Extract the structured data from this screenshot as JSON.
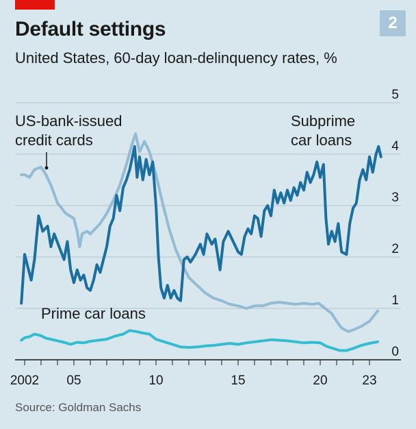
{
  "header": {
    "title": "Default settings",
    "subtitle": "United States, 60-day loan-delinquency rates, %",
    "chart_number": "2"
  },
  "source": "Source: Goldman Sachs",
  "colors": {
    "background": "#d8e6ee",
    "accent": "#e3120b",
    "subprime": "#1a6fa0",
    "credit_cards": "#93bcd4",
    "prime": "#35bcd0",
    "badge": "#a8c6d8"
  },
  "chart_data": {
    "type": "line",
    "title": "Default settings",
    "subtitle": "United States, 60-day loan-delinquency rates, %",
    "xlim": [
      2001.5,
      2024
    ],
    "ylim": [
      0,
      5
    ],
    "x_ticks": [
      2002,
      2005,
      2010,
      2015,
      2020,
      2023
    ],
    "x_tick_labels": [
      "2002",
      "05",
      "10",
      "15",
      "20",
      "23"
    ],
    "y_ticks": [
      0,
      1,
      2,
      3,
      4,
      5
    ],
    "y_tick_labels": [
      "0",
      "1",
      "2",
      "3",
      "4",
      "5"
    ],
    "grid": true,
    "legend": "inline labels",
    "annotations": [
      {
        "text": "US-bank-issued",
        "series": "US-bank-issued credit cards"
      },
      {
        "text": "credit cards",
        "series": "US-bank-issued credit cards"
      },
      {
        "text": "Subprime",
        "series": "Subprime car loans"
      },
      {
        "text": "car loans",
        "series": "Subprime car loans"
      },
      {
        "text": "Prime car loans",
        "series": "Prime car loans"
      }
    ],
    "series": [
      {
        "name": "Subprime car loans",
        "color": "#1a6fa0",
        "points": [
          [
            2001.8,
            1.1
          ],
          [
            2002.0,
            2.05
          ],
          [
            2002.2,
            1.8
          ],
          [
            2002.4,
            1.55
          ],
          [
            2002.6,
            1.95
          ],
          [
            2002.85,
            2.8
          ],
          [
            2003.1,
            2.5
          ],
          [
            2003.4,
            2.6
          ],
          [
            2003.6,
            2.2
          ],
          [
            2003.8,
            2.45
          ],
          [
            2004.1,
            2.2
          ],
          [
            2004.4,
            1.95
          ],
          [
            2004.6,
            2.3
          ],
          [
            2004.8,
            1.75
          ],
          [
            2005.0,
            1.5
          ],
          [
            2005.2,
            1.75
          ],
          [
            2005.4,
            1.55
          ],
          [
            2005.6,
            1.65
          ],
          [
            2005.8,
            1.4
          ],
          [
            2006.0,
            1.35
          ],
          [
            2006.2,
            1.55
          ],
          [
            2006.4,
            1.85
          ],
          [
            2006.6,
            1.7
          ],
          [
            2006.8,
            1.95
          ],
          [
            2007.0,
            2.2
          ],
          [
            2007.2,
            2.6
          ],
          [
            2007.4,
            2.75
          ],
          [
            2007.6,
            3.2
          ],
          [
            2007.8,
            2.9
          ],
          [
            2008.0,
            3.35
          ],
          [
            2008.2,
            3.5
          ],
          [
            2008.4,
            3.7
          ],
          [
            2008.6,
            4.0
          ],
          [
            2008.7,
            4.15
          ],
          [
            2008.85,
            3.55
          ],
          [
            2009.0,
            3.95
          ],
          [
            2009.2,
            3.5
          ],
          [
            2009.4,
            3.9
          ],
          [
            2009.6,
            3.6
          ],
          [
            2009.8,
            3.85
          ],
          [
            2010.0,
            3.0
          ],
          [
            2010.15,
            2.0
          ],
          [
            2010.3,
            1.4
          ],
          [
            2010.5,
            1.2
          ],
          [
            2010.7,
            1.45
          ],
          [
            2010.9,
            1.2
          ],
          [
            2011.1,
            1.35
          ],
          [
            2011.3,
            1.2
          ],
          [
            2011.5,
            1.15
          ],
          [
            2011.7,
            1.95
          ],
          [
            2011.9,
            2.0
          ],
          [
            2012.1,
            1.9
          ],
          [
            2012.4,
            2.05
          ],
          [
            2012.7,
            2.25
          ],
          [
            2012.9,
            2.05
          ],
          [
            2013.1,
            2.45
          ],
          [
            2013.4,
            2.25
          ],
          [
            2013.6,
            2.35
          ],
          [
            2013.9,
            1.75
          ],
          [
            2014.1,
            2.3
          ],
          [
            2014.4,
            2.5
          ],
          [
            2014.7,
            2.3
          ],
          [
            2015.0,
            2.1
          ],
          [
            2015.2,
            2.05
          ],
          [
            2015.4,
            2.4
          ],
          [
            2015.6,
            2.55
          ],
          [
            2015.8,
            2.45
          ],
          [
            2016.0,
            2.8
          ],
          [
            2016.2,
            2.75
          ],
          [
            2016.4,
            2.4
          ],
          [
            2016.6,
            2.9
          ],
          [
            2016.8,
            3.0
          ],
          [
            2017.0,
            2.8
          ],
          [
            2017.2,
            3.3
          ],
          [
            2017.4,
            3.05
          ],
          [
            2017.6,
            3.25
          ],
          [
            2017.8,
            3.05
          ],
          [
            2018.0,
            3.3
          ],
          [
            2018.2,
            3.1
          ],
          [
            2018.4,
            3.35
          ],
          [
            2018.6,
            3.2
          ],
          [
            2018.8,
            3.45
          ],
          [
            2019.0,
            3.3
          ],
          [
            2019.2,
            3.65
          ],
          [
            2019.4,
            3.45
          ],
          [
            2019.6,
            3.6
          ],
          [
            2019.8,
            3.85
          ],
          [
            2020.0,
            3.55
          ],
          [
            2020.2,
            3.8
          ],
          [
            2020.35,
            2.75
          ],
          [
            2020.5,
            2.25
          ],
          [
            2020.7,
            2.5
          ],
          [
            2020.9,
            2.3
          ],
          [
            2021.1,
            2.65
          ],
          [
            2021.3,
            2.1
          ],
          [
            2021.6,
            2.05
          ],
          [
            2021.8,
            2.65
          ],
          [
            2022.0,
            2.95
          ],
          [
            2022.2,
            3.05
          ],
          [
            2022.4,
            3.5
          ],
          [
            2022.6,
            3.7
          ],
          [
            2022.8,
            3.5
          ],
          [
            2023.0,
            3.95
          ],
          [
            2023.2,
            3.65
          ],
          [
            2023.4,
            4.0
          ],
          [
            2023.55,
            4.15
          ],
          [
            2023.7,
            3.95
          ]
        ]
      },
      {
        "name": "US-bank-issued credit cards",
        "color": "#93bcd4",
        "points": [
          [
            2001.8,
            3.6
          ],
          [
            2002.0,
            3.6
          ],
          [
            2002.3,
            3.55
          ],
          [
            2002.6,
            3.7
          ],
          [
            2003.0,
            3.75
          ],
          [
            2003.3,
            3.6
          ],
          [
            2003.6,
            3.4
          ],
          [
            2004.0,
            3.05
          ],
          [
            2004.5,
            2.85
          ],
          [
            2005.0,
            2.75
          ],
          [
            2005.2,
            2.5
          ],
          [
            2005.35,
            2.2
          ],
          [
            2005.5,
            2.45
          ],
          [
            2005.8,
            2.5
          ],
          [
            2006.0,
            2.45
          ],
          [
            2006.3,
            2.55
          ],
          [
            2006.6,
            2.65
          ],
          [
            2007.0,
            2.85
          ],
          [
            2007.4,
            3.1
          ],
          [
            2007.8,
            3.4
          ],
          [
            2008.2,
            3.8
          ],
          [
            2008.5,
            4.15
          ],
          [
            2008.75,
            4.4
          ],
          [
            2009.0,
            4.05
          ],
          [
            2009.3,
            4.25
          ],
          [
            2009.6,
            4.05
          ],
          [
            2010.0,
            3.6
          ],
          [
            2010.4,
            3.05
          ],
          [
            2010.8,
            2.55
          ],
          [
            2011.2,
            2.15
          ],
          [
            2011.6,
            1.85
          ],
          [
            2012.0,
            1.6
          ],
          [
            2012.5,
            1.45
          ],
          [
            2013.0,
            1.3
          ],
          [
            2013.5,
            1.2
          ],
          [
            2014.0,
            1.15
          ],
          [
            2014.5,
            1.08
          ],
          [
            2015.0,
            1.05
          ],
          [
            2015.5,
            1.0
          ],
          [
            2016.0,
            1.05
          ],
          [
            2016.5,
            1.05
          ],
          [
            2017.0,
            1.1
          ],
          [
            2017.5,
            1.12
          ],
          [
            2018.0,
            1.1
          ],
          [
            2018.5,
            1.08
          ],
          [
            2019.0,
            1.1
          ],
          [
            2019.5,
            1.08
          ],
          [
            2019.9,
            1.1
          ],
          [
            2020.3,
            1.0
          ],
          [
            2020.7,
            0.9
          ],
          [
            2021.0,
            0.75
          ],
          [
            2021.3,
            0.62
          ],
          [
            2021.7,
            0.55
          ],
          [
            2022.0,
            0.58
          ],
          [
            2022.5,
            0.65
          ],
          [
            2023.0,
            0.75
          ],
          [
            2023.5,
            0.95
          ]
        ]
      },
      {
        "name": "Prime car loans",
        "color": "#35bcd0",
        "points": [
          [
            2001.8,
            0.38
          ],
          [
            2002.0,
            0.43
          ],
          [
            2002.3,
            0.45
          ],
          [
            2002.6,
            0.5
          ],
          [
            2003.0,
            0.47
          ],
          [
            2003.3,
            0.42
          ],
          [
            2003.6,
            0.4
          ],
          [
            2004.0,
            0.37
          ],
          [
            2004.4,
            0.34
          ],
          [
            2004.8,
            0.3
          ],
          [
            2005.2,
            0.34
          ],
          [
            2005.6,
            0.33
          ],
          [
            2006.0,
            0.36
          ],
          [
            2006.5,
            0.38
          ],
          [
            2007.0,
            0.4
          ],
          [
            2007.5,
            0.46
          ],
          [
            2008.0,
            0.5
          ],
          [
            2008.4,
            0.57
          ],
          [
            2008.8,
            0.55
          ],
          [
            2009.2,
            0.52
          ],
          [
            2009.6,
            0.5
          ],
          [
            2010.0,
            0.4
          ],
          [
            2010.5,
            0.35
          ],
          [
            2011.0,
            0.3
          ],
          [
            2011.5,
            0.25
          ],
          [
            2012.0,
            0.24
          ],
          [
            2012.5,
            0.25
          ],
          [
            2013.0,
            0.27
          ],
          [
            2013.5,
            0.28
          ],
          [
            2014.0,
            0.3
          ],
          [
            2014.5,
            0.32
          ],
          [
            2015.0,
            0.3
          ],
          [
            2015.5,
            0.33
          ],
          [
            2016.0,
            0.35
          ],
          [
            2016.5,
            0.37
          ],
          [
            2017.0,
            0.39
          ],
          [
            2017.5,
            0.38
          ],
          [
            2018.0,
            0.37
          ],
          [
            2018.5,
            0.35
          ],
          [
            2019.0,
            0.33
          ],
          [
            2019.5,
            0.34
          ],
          [
            2020.0,
            0.33
          ],
          [
            2020.4,
            0.26
          ],
          [
            2020.8,
            0.22
          ],
          [
            2021.2,
            0.18
          ],
          [
            2021.6,
            0.18
          ],
          [
            2022.0,
            0.22
          ],
          [
            2022.5,
            0.28
          ],
          [
            2023.0,
            0.32
          ],
          [
            2023.5,
            0.35
          ]
        ]
      }
    ]
  }
}
